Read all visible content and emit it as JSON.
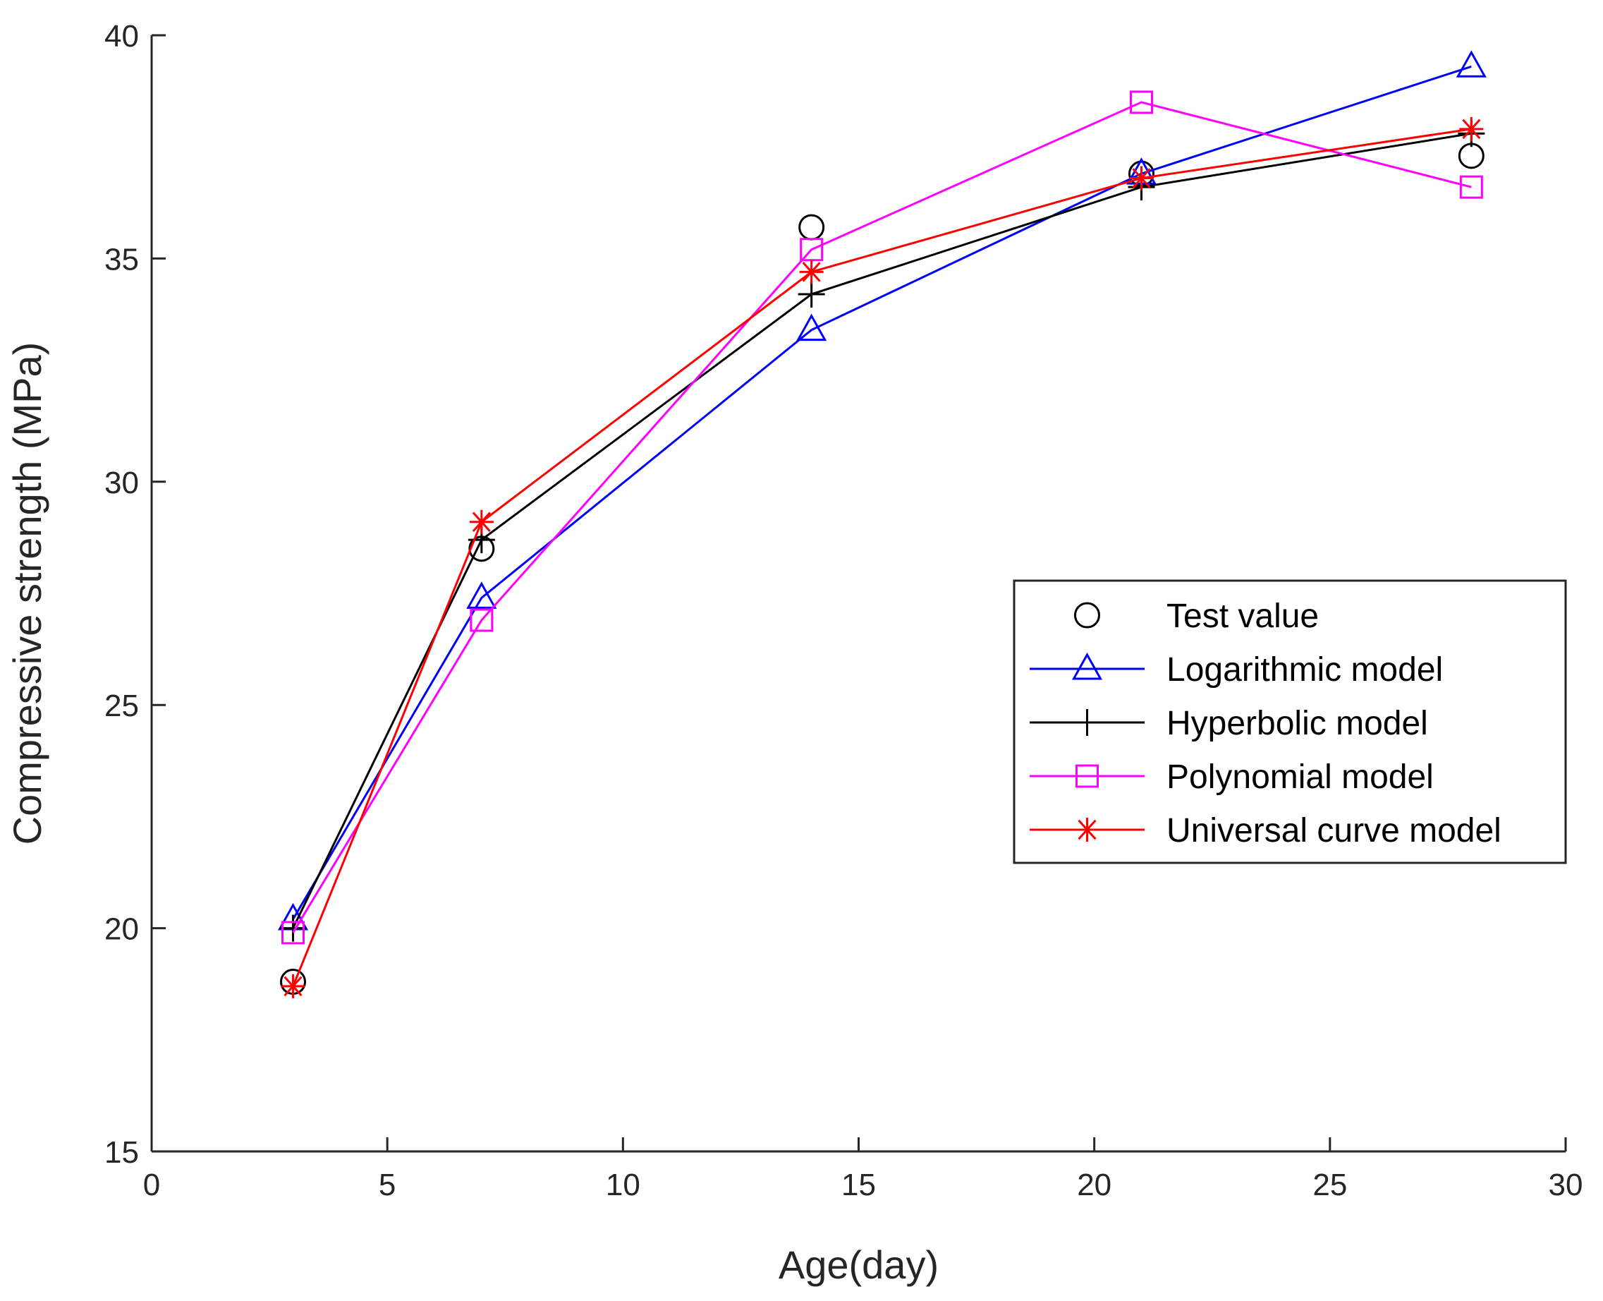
{
  "chart_data": {
    "type": "line",
    "title": "",
    "xlabel": "Age(day)",
    "ylabel": "Compressive strength (MPa)",
    "xlim": [
      0,
      30
    ],
    "ylim": [
      15,
      40
    ],
    "xticks": [
      0,
      5,
      10,
      15,
      20,
      25,
      30
    ],
    "yticks": [
      15,
      20,
      25,
      30,
      35,
      40
    ],
    "xtick_labels": [
      "0",
      "5",
      "10",
      "15",
      "20",
      "25",
      "30"
    ],
    "ytick_labels": [
      "15",
      "20",
      "25",
      "30",
      "35",
      "40"
    ],
    "grid": false,
    "legend_position": "right-middle",
    "x": [
      3,
      7,
      14,
      21,
      28
    ],
    "series": [
      {
        "name": "Test value",
        "values": [
          18.8,
          28.5,
          35.7,
          36.9,
          37.3
        ],
        "color": "#000000",
        "marker": "circle",
        "line": false
      },
      {
        "name": "Logarithmic model",
        "values": [
          20.2,
          27.4,
          33.4,
          36.9,
          39.3
        ],
        "color": "#0000ff",
        "marker": "triangle",
        "line": true
      },
      {
        "name": "Hyperbolic model",
        "values": [
          20.0,
          28.7,
          34.2,
          36.6,
          37.8
        ],
        "color": "#000000",
        "marker": "plus",
        "line": true
      },
      {
        "name": "Polynomial model",
        "values": [
          19.9,
          26.9,
          35.2,
          38.5,
          36.6
        ],
        "color": "#ff00ff",
        "marker": "square",
        "line": true
      },
      {
        "name": "Universal curve model",
        "values": [
          18.7,
          29.1,
          34.7,
          36.8,
          37.9
        ],
        "color": "#ff0000",
        "marker": "asterisk",
        "line": true
      }
    ]
  }
}
